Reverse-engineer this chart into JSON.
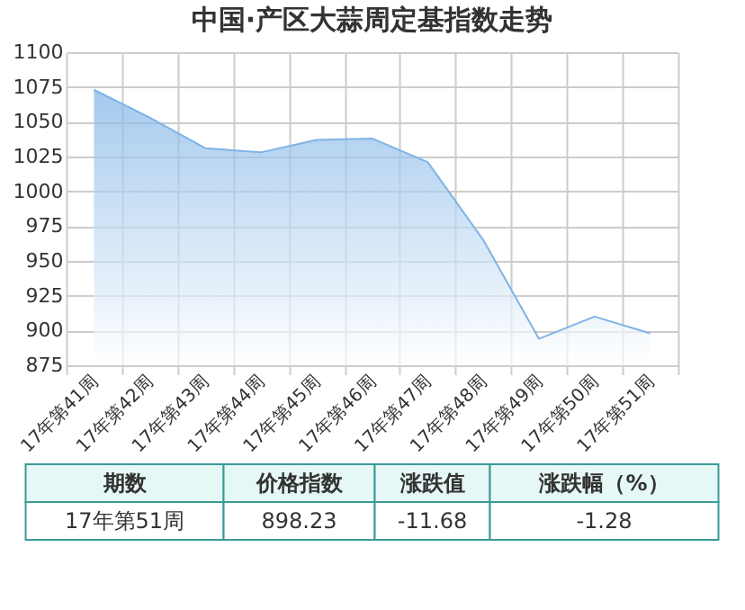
{
  "chart_data": {
    "type": "area",
    "title": "中国·产区大蒜周定基指数走势",
    "categories": [
      "17年第41周",
      "17年第42周",
      "17年第43周",
      "17年第44周",
      "17年第45周",
      "17年第46周",
      "17年第47周",
      "17年第48周",
      "17年第49周",
      "17年第50周",
      "17年第51周"
    ],
    "series": [
      {
        "color": "#7eb3e6",
        "values": [
          1073,
          1053,
          1031,
          1028,
          1037,
          1038,
          1021,
          965,
          894,
          910,
          898
        ]
      }
    ],
    "ylim": [
      875,
      1100
    ],
    "yticks": [
      875,
      900,
      925,
      950,
      975,
      1000,
      1025,
      1050,
      1075,
      1100
    ],
    "grid": true,
    "annotations": [
      "期数",
      "价格指数",
      "涨跌值",
      "涨跌幅（%）",
      "17年第51周",
      "898.23",
      "-11.68",
      "-1.28"
    ]
  }
}
